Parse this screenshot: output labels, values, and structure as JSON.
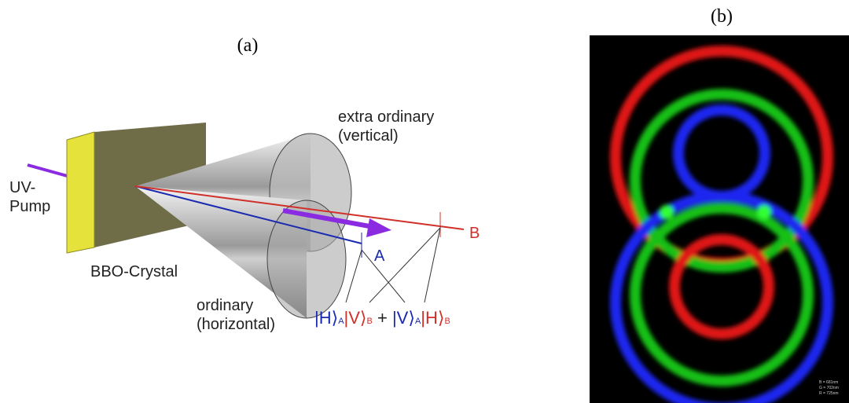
{
  "panel_a": {
    "label": "(a)",
    "extra_ordinary": [
      "extra ordinary",
      "(vertical)"
    ],
    "uv_pump": [
      "UV-",
      "Pump"
    ],
    "crystal": "BBO-Crystal",
    "ordinary": [
      "ordinary",
      "(horizontal)"
    ],
    "beam_a": "A",
    "beam_b": "B",
    "formula": [
      "|H⟩",
      "A",
      "|V⟩",
      "B",
      "+",
      "|V⟩",
      "A",
      "|H⟩",
      "B"
    ]
  },
  "panel_b": {
    "label": "(b)",
    "legend": [
      "B = 681nm",
      "G = 702nm",
      "R = 725nm"
    ]
  }
}
